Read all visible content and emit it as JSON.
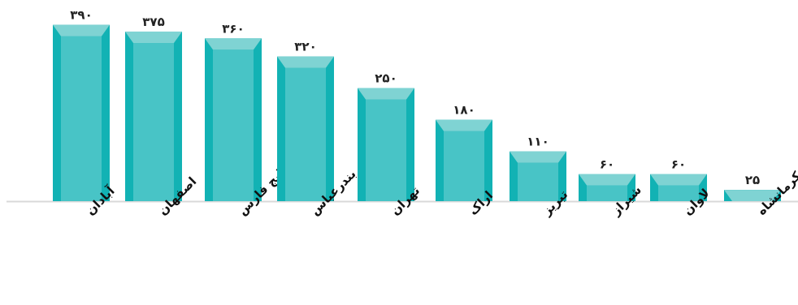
{
  "chart_data": {
    "type": "bar",
    "title": "",
    "xlabel": "",
    "ylabel": "",
    "ylim": [
      0,
      400
    ],
    "grid": false,
    "legend": "none",
    "categories": [
      "آبادان",
      "اصفهان",
      "ستاره خلیج فارس",
      "بندرعباس",
      "تهران",
      "اراک",
      "تبریز",
      "شیراز",
      "لاوان",
      "کرمانشاه"
    ],
    "values": [
      390,
      375,
      360,
      320,
      250,
      180,
      110,
      60,
      60,
      25
    ],
    "value_labels": [
      "۳۹۰",
      "۳۷۵",
      "۳۶۰",
      "۳۲۰",
      "۲۵۰",
      "۱۸۰",
      "۱۱۰",
      "۶۰",
      "۶۰",
      "۲۵"
    ],
    "colors": {
      "bar_face": "#48c4c6",
      "bar_side": "#12b2b4",
      "bar_top": "#7fd3d3",
      "baseline": "#d9d9d9"
    }
  }
}
